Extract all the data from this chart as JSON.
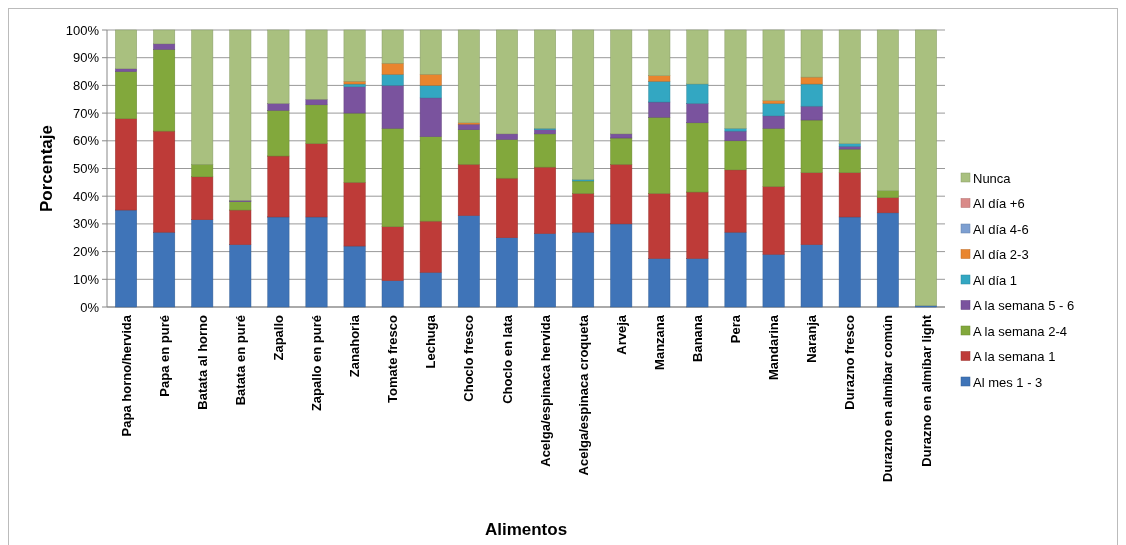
{
  "chart_data": {
    "type": "bar",
    "stacked": true,
    "xlabel": "Alimentos",
    "ylabel": "Porcentaje",
    "legend": "right",
    "grid": "y",
    "categories": [
      "Papa horno/hervida",
      "Papa en puré",
      "Batata al horno",
      "Batata en puré",
      "Zapallo",
      "Zapallo en puré",
      "Zanahoria",
      "Tomate fresco",
      "Lechuga",
      "Choclo fresco",
      "Choclo en lata",
      "Acelga/espinaca hervida",
      "Acelga/espinaca croqueta",
      "Arveja",
      "Manzana",
      "Banana",
      "Pera",
      "Mandarina",
      "Naranja",
      "Durazno fresco",
      "Durazno en almíbar común",
      "Durazno en almíbar light"
    ],
    "ylim": [
      0,
      100
    ],
    "yticks": [
      {
        "value": 0,
        "label": "0%"
      },
      {
        "value": 10,
        "label": "10%"
      },
      {
        "value": 20,
        "label": "20%"
      },
      {
        "value": 30,
        "label": "30%"
      },
      {
        "value": 40,
        "label": "40%"
      },
      {
        "value": 50,
        "label": "50%"
      },
      {
        "value": 60,
        "label": "60%"
      },
      {
        "value": 70,
        "label": "70%"
      },
      {
        "value": 80,
        "label": "80%"
      },
      {
        "value": 90,
        "label": "90%"
      },
      {
        "value": 100,
        "label": "100%"
      }
    ],
    "series": [
      {
        "name": "Al mes 1 - 3",
        "color": "#3f74b8",
        "values": [
          35,
          27,
          31.5,
          22.5,
          32.5,
          32.5,
          22,
          9.5,
          12.5,
          33,
          25,
          26.5,
          27,
          30,
          17.5,
          17.5,
          27,
          19,
          22.5,
          32.5,
          34,
          0.5
        ]
      },
      {
        "name": "A la semana 1",
        "color": "#be3b38",
        "values": [
          33,
          36.5,
          15.5,
          12.5,
          22,
          26.5,
          23,
          19.5,
          18.5,
          18.5,
          21.5,
          24,
          14,
          21.5,
          23.5,
          24,
          22.5,
          24.5,
          26,
          16,
          5.5,
          0
        ]
      },
      {
        "name": "A la semana 2-4",
        "color": "#82a83c",
        "values": [
          17,
          29.5,
          4.5,
          3,
          16.5,
          14,
          25,
          35.5,
          30.5,
          12.5,
          14,
          12,
          4.5,
          9.5,
          27.5,
          25,
          10.5,
          21,
          19,
          8.5,
          2.5,
          0
        ]
      },
      {
        "name": "A la semana 5 - 6",
        "color": "#7a539e",
        "values": [
          1,
          2,
          0,
          0.5,
          2.5,
          2,
          9.5,
          15.5,
          14,
          2,
          2,
          1.5,
          0,
          1.5,
          5.5,
          7,
          3.5,
          4.5,
          5,
          1,
          0,
          0
        ]
      },
      {
        "name": "Al día 1",
        "color": "#33a7c2",
        "values": [
          0,
          0,
          0,
          0,
          0,
          0,
          1,
          4,
          4.5,
          0,
          0,
          0.5,
          0.5,
          0,
          7.5,
          7,
          1,
          4.5,
          8,
          1,
          0,
          0
        ]
      },
      {
        "name": "Al día 2-3",
        "color": "#e9852e",
        "values": [
          0,
          0,
          0,
          0,
          0,
          0,
          1,
          4,
          4,
          0.5,
          0,
          0,
          0,
          0,
          2,
          0,
          0,
          1,
          2.5,
          0,
          0,
          0
        ]
      },
      {
        "name": "Al día 4-6",
        "color": "#7d9fd1",
        "values": [
          0,
          0,
          0,
          0,
          0,
          0,
          0,
          0,
          0,
          0,
          0,
          0,
          0,
          0,
          0,
          0,
          0,
          0,
          0,
          0,
          0,
          0
        ]
      },
      {
        "name": "Al día +6",
        "color": "#d98a88",
        "values": [
          0,
          0,
          0,
          0,
          0,
          0,
          0,
          0,
          0,
          0,
          0,
          0,
          0,
          0,
          0,
          0,
          0,
          0,
          0,
          0,
          0,
          0
        ]
      },
      {
        "name": "Nunca",
        "color": "#a9c07f",
        "values": [
          14,
          5,
          48.5,
          61.5,
          26.5,
          25,
          18.5,
          12,
          16,
          33.5,
          37.5,
          35.5,
          54,
          37.5,
          16.5,
          19.5,
          35.5,
          25.5,
          17,
          41,
          58,
          99.5
        ]
      }
    ]
  }
}
